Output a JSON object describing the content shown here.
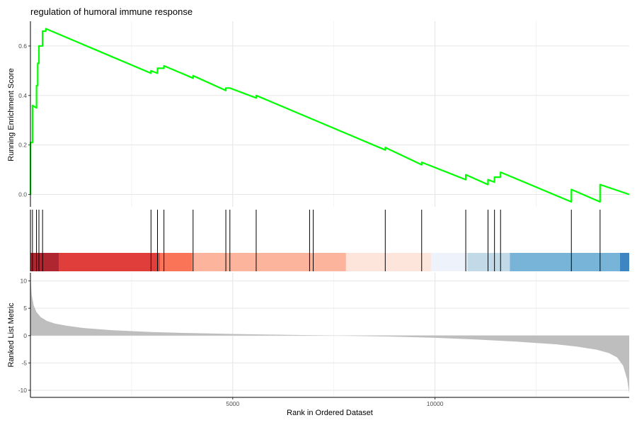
{
  "chart_data": {
    "type": "line",
    "title": "regulation of humoral immune response",
    "x_axis": {
      "label": "Rank in Ordered Dataset",
      "range": [
        0,
        14800
      ],
      "ticks": [
        5000,
        10000
      ],
      "tick_labels": [
        "5000",
        "10000"
      ]
    },
    "panels": [
      {
        "name": "running-enrichment",
        "type": "line",
        "ylabel": "Running Enrichment Score",
        "ylim": [
          -0.05,
          0.7
        ],
        "y_ticks": [
          0.0,
          0.2,
          0.4,
          0.6
        ],
        "y_tick_labels": [
          "0.0",
          "0.2",
          "0.4",
          "0.6"
        ],
        "grid": true,
        "color": "#00ff00",
        "series": [
          {
            "x": [
              0,
              1,
              1,
              50,
              50,
              150,
              150,
              180,
              180,
              210,
              210,
              300,
              300,
              380,
              380,
              2980,
              2980,
              3140,
              3140,
              3300,
              3300,
              4020,
              4020,
              4830,
              4830,
              4930,
              4930,
              5580,
              5580,
              8770,
              8770,
              9670,
              9670,
              10760,
              10760,
              11310,
              11310,
              11470,
              11470,
              11620,
              11620,
              13370,
              13370,
              14080,
              14080,
              14800
            ],
            "y": [
              0.0,
              0.0,
              0.21,
              0.21,
              0.36,
              0.35,
              0.44,
              0.44,
              0.53,
              0.53,
              0.6,
              0.6,
              0.66,
              0.66,
              0.67,
              0.49,
              0.5,
              0.49,
              0.51,
              0.51,
              0.52,
              0.47,
              0.48,
              0.42,
              0.43,
              0.43,
              0.43,
              0.39,
              0.4,
              0.18,
              0.19,
              0.12,
              0.13,
              0.06,
              0.08,
              0.04,
              0.06,
              0.05,
              0.07,
              0.07,
              0.09,
              -0.03,
              0.02,
              -0.03,
              0.04,
              0.0
            ]
          }
        ]
      },
      {
        "name": "gene-hits",
        "type": "rug",
        "color": "#000000",
        "positions": [
          1,
          50,
          150,
          210,
          300,
          2980,
          3140,
          3300,
          4020,
          4830,
          4930,
          5580,
          6900,
          6990,
          8770,
          9670,
          10760,
          11310,
          11470,
          11620,
          13370,
          14080
        ]
      },
      {
        "name": "rank-heat-strip",
        "type": "heatmap",
        "segments": [
          {
            "start": 0,
            "end": 700,
            "color": "#b02630"
          },
          {
            "start": 700,
            "end": 3200,
            "color": "#e03e3a"
          },
          {
            "start": 3200,
            "end": 4000,
            "color": "#fa7457"
          },
          {
            "start": 4000,
            "end": 7800,
            "color": "#fcb49c"
          },
          {
            "start": 7800,
            "end": 9900,
            "color": "#fde5dc"
          },
          {
            "start": 9900,
            "end": 10800,
            "color": "#eef3fb"
          },
          {
            "start": 10800,
            "end": 11850,
            "color": "#c2d9e8"
          },
          {
            "start": 11850,
            "end": 14570,
            "color": "#78b3d8"
          },
          {
            "start": 14570,
            "end": 14800,
            "color": "#3d86c1"
          }
        ]
      },
      {
        "name": "ranked-list-metric",
        "type": "area",
        "ylabel": "Ranked List Metric",
        "ylim": [
          -11.3,
          11.5
        ],
        "y_ticks": [
          10,
          5,
          0,
          -5,
          -10
        ],
        "y_tick_labels": [
          "10",
          "5",
          "0",
          "-5",
          "-10"
        ],
        "grid": true,
        "color": "#bebebe",
        "series": [
          {
            "x": [
              0,
              30,
              80,
              150,
              250,
              400,
              600,
              900,
              1300,
              2000,
              3000,
              4000,
              5000,
              6000,
              7000,
              7600,
              8000,
              9000,
              10000,
              11000,
              12000,
              13000,
              13500,
              14000,
              14300,
              14500,
              14650,
              14750,
              14800
            ],
            "y": [
              11,
              7.5,
              5.5,
              4.3,
              3.4,
              2.7,
              2.2,
              1.8,
              1.4,
              1.0,
              0.65,
              0.45,
              0.3,
              0.18,
              0.08,
              0.0,
              -0.05,
              -0.2,
              -0.4,
              -0.7,
              -1.1,
              -1.6,
              -2.0,
              -2.6,
              -3.2,
              -4.0,
              -5.5,
              -8.0,
              -10.5
            ]
          }
        ]
      }
    ]
  }
}
